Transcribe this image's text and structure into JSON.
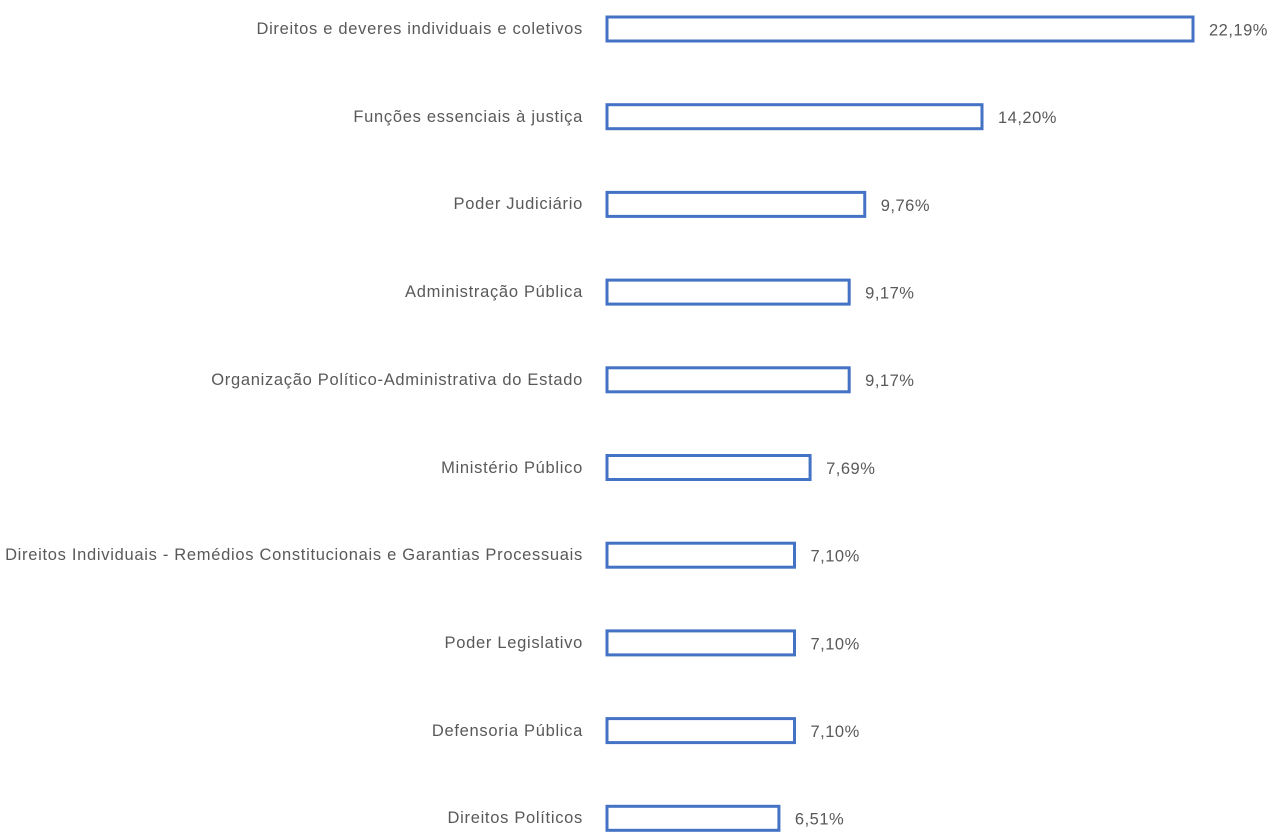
{
  "chart_data": {
    "type": "bar",
    "orientation": "horizontal",
    "categories": [
      "Direitos e deveres individuais e coletivos",
      "Funções essenciais à justiça",
      "Poder Judiciário",
      "Administração Pública",
      "Organização Político-Administrativa do Estado",
      "Ministério Público",
      "Direitos Individuais - Remédios Constitucionais e Garantias Processuais",
      "Poder Legislativo",
      "Defensoria Pública",
      "Direitos Políticos"
    ],
    "values": [
      22.19,
      14.2,
      9.76,
      9.17,
      9.17,
      7.69,
      7.1,
      7.1,
      7.1,
      6.51
    ],
    "value_labels": [
      "22,19%",
      "14,20%",
      "9,76%",
      "9,17%",
      "9,17%",
      "7,69%",
      "7,10%",
      "7,10%",
      "7,10%",
      "6,51%"
    ],
    "color": "#4472c4"
  }
}
